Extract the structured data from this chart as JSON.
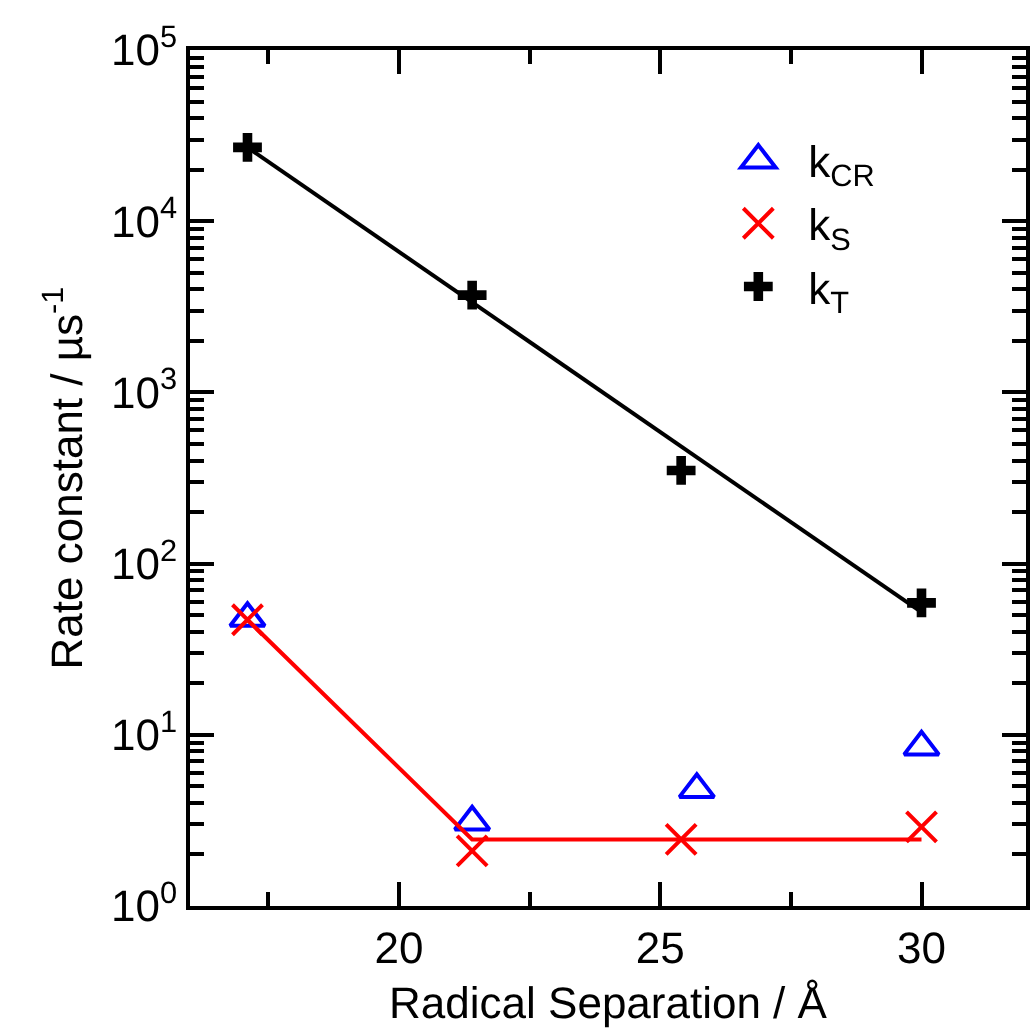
{
  "chart_data": {
    "type": "scatter",
    "xlabel": "Radical Separation / Å",
    "ylabel": "Rate constant / µs$^{-1}$",
    "log": "y",
    "legend": "top right",
    "xlim": [
      16,
      32
    ],
    "xticks": [
      20,
      25,
      30
    ],
    "ylim": [
      1,
      100000
    ],
    "yticks": [
      {
        "value": 1,
        "label": "10$^{0}$"
      },
      {
        "value": 10,
        "label": "10$^{1}$"
      },
      {
        "value": 100,
        "label": "10$^{2}$"
      },
      {
        "value": 1000,
        "label": "10$^{3}$"
      },
      {
        "value": 10000,
        "label": "10$^{4}$"
      },
      {
        "value": 100000,
        "label": "10$^{5}$"
      }
    ],
    "series": [
      {
        "name": "k$_{CR}$",
        "marker": "triangle",
        "color": "#0000ff",
        "x": [
          17.1,
          21.4,
          25.7,
          30
        ],
        "values": [
          48,
          3.1,
          4.8,
          8.5
        ]
      },
      {
        "name": "k$_{S}$",
        "marker": "x",
        "color": "#ff0000",
        "x": [
          17.1,
          21.4,
          25.4,
          30
        ],
        "values": [
          47,
          2.1,
          2.45,
          2.9
        ]
      },
      {
        "name": "k$_{T}$",
        "marker": "cross",
        "color": "#000000",
        "x": [
          17.1,
          21.4,
          25.4,
          30
        ],
        "values": [
          27000,
          3700,
          350,
          59
        ]
      },
      {
        "type": "line",
        "color": "#ff0000",
        "x": [
          17.1,
          21.4,
          30
        ],
        "values": [
          47,
          2.45,
          2.45
        ]
      },
      {
        "type": "line",
        "color": "#000000",
        "x": [
          17.1,
          30
        ],
        "values": [
          27000,
          52
        ]
      }
    ]
  }
}
